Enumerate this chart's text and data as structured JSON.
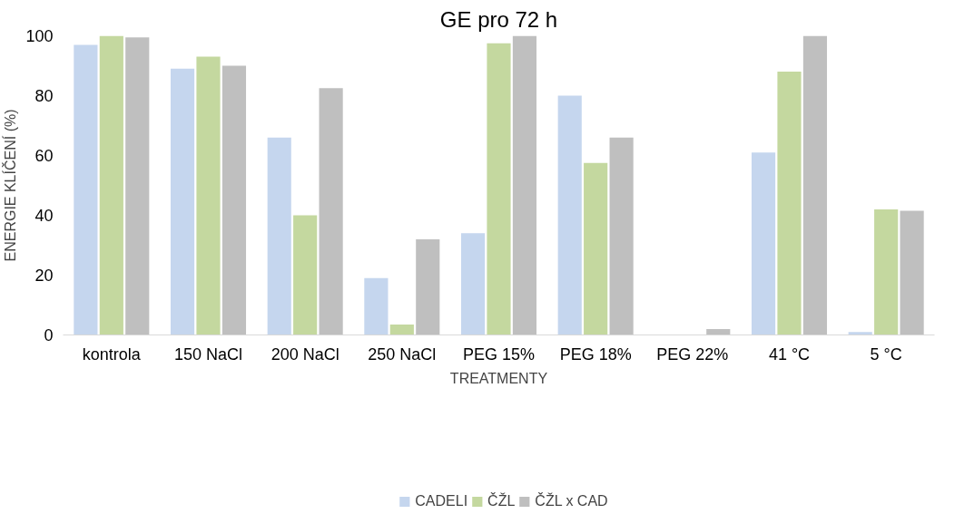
{
  "chart_data": {
    "type": "bar",
    "title": "GE pro 72 h",
    "xlabel": "TREATMENTY",
    "ylabel": "ENERGIE KLÍČENÍ (%)",
    "categories": [
      "kontrola",
      "150 NaCl",
      "200 NaCl",
      "250 NaCl",
      "PEG 15%",
      "PEG 18%",
      "PEG 22%",
      "41 °C",
      "5 °C"
    ],
    "series": [
      {
        "name": "CADELI",
        "color": "#c5d6ee",
        "values": [
          97,
          89,
          66,
          19,
          34,
          80,
          0,
          61,
          1
        ]
      },
      {
        "name": "ČŽL",
        "color": "#c4d89f",
        "values": [
          100,
          93,
          40,
          3.5,
          97.5,
          57.5,
          0,
          88,
          42
        ]
      },
      {
        "name": "ČŽL x CAD",
        "color": "#bfbfbf",
        "values": [
          99.5,
          90,
          82.5,
          32,
          100,
          66,
          2,
          100,
          41.5
        ]
      }
    ],
    "ylim": [
      0,
      100
    ],
    "yticks": [
      0,
      20,
      40,
      60,
      80,
      100
    ],
    "grid": false,
    "legend": "bottom"
  }
}
